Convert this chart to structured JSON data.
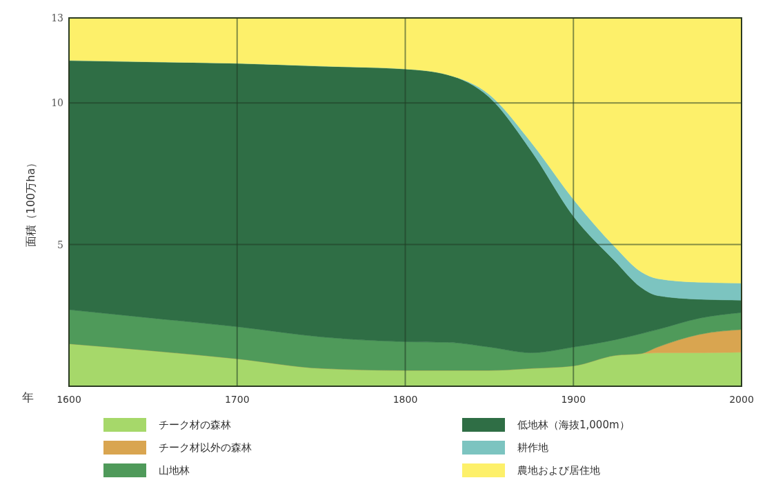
{
  "chart_data": {
    "type": "area",
    "stacked": true,
    "xlabel": "年",
    "ylabel": "面積（100万ha）",
    "x": [
      1600,
      1650,
      1700,
      1750,
      1800,
      1825,
      1850,
      1875,
      1900,
      1925,
      1940,
      1950,
      1975,
      2000
    ],
    "series": [
      {
        "name": "チーク材の森林",
        "color": "#a6d86a",
        "values": [
          1.5,
          1.25,
          0.97,
          0.63,
          0.56,
          0.56,
          0.56,
          0.63,
          0.72,
          1.09,
          1.15,
          1.18,
          1.18,
          1.2
        ]
      },
      {
        "name": "チーク材以外の森林",
        "color": "#d9a550",
        "values": [
          0,
          0,
          0,
          0,
          0,
          0,
          0,
          0,
          0,
          0,
          0,
          0.2,
          0.65,
          0.8
        ]
      },
      {
        "name": "山地林",
        "color": "#4f9a5a",
        "values": [
          1.2,
          1.15,
          1.13,
          1.11,
          1.01,
          0.99,
          0.82,
          0.55,
          0.66,
          0.55,
          0.7,
          0.62,
          0.57,
          0.6
        ]
      },
      {
        "name": "低地林（海抜1,000m）",
        "color": "#2f6e45",
        "values": [
          8.8,
          9.05,
          9.3,
          9.56,
          9.63,
          9.45,
          8.82,
          7.12,
          4.62,
          2.76,
          1.65,
          1.2,
          0.67,
          0.44
        ]
      },
      {
        "name": "耕作地",
        "color": "#7cc4c0",
        "values": [
          0,
          0,
          0,
          0,
          0,
          0,
          0.1,
          0.3,
          0.6,
          0.5,
          0.55,
          0.6,
          0.6,
          0.6
        ]
      },
      {
        "name": "農地および居住地",
        "color": "#fdf06a",
        "values": [
          1.5,
          1.55,
          1.6,
          1.7,
          1.8,
          2.0,
          2.7,
          4.4,
          6.4,
          8.1,
          8.95,
          9.2,
          9.33,
          9.36
        ]
      }
    ],
    "xlim": [
      1600,
      2000
    ],
    "xticks": [
      1600,
      1700,
      1800,
      1900,
      2000
    ],
    "ylim": [
      0,
      13
    ],
    "yticks": [
      5,
      10,
      13
    ],
    "grid": true,
    "legend": "bottom"
  }
}
